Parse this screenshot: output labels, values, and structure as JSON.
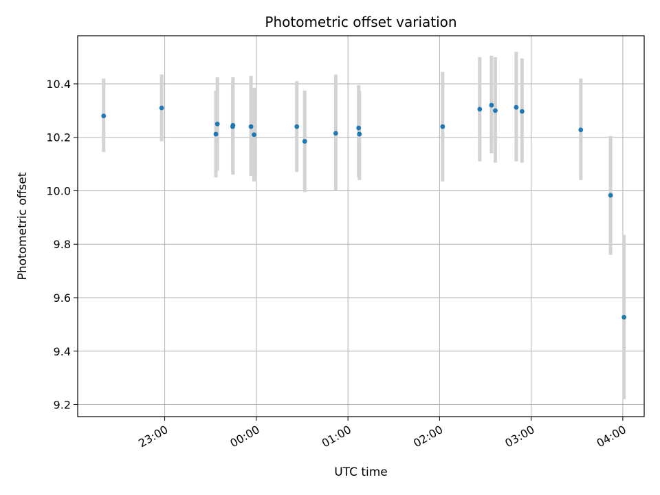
{
  "chart_data": {
    "type": "scatter",
    "title": "Photometric offset variation",
    "xlabel": "UTC time",
    "ylabel": "Photometric offset",
    "x_tick_labels": [
      "23:00",
      "00:00",
      "01:00",
      "02:00",
      "03:00",
      "04:00"
    ],
    "x_tick_minutes": [
      1380,
      1440,
      1500,
      1560,
      1620,
      1680
    ],
    "y_ticks": [
      9.2,
      9.4,
      9.6,
      9.8,
      10.0,
      10.2,
      10.4
    ],
    "y_tick_labels": [
      "9.2",
      "9.4",
      "9.6",
      "9.8",
      "10.0",
      "10.2",
      "10.4"
    ],
    "xlim_minutes": [
      1323,
      1694
    ],
    "ylim": [
      9.155,
      10.58
    ],
    "grid": true,
    "point_color": "#1f77b4",
    "errorbar_color": "#d3d3d3",
    "points": [
      {
        "t": 1340.0,
        "y": 10.28,
        "ylo": 10.145,
        "yhi": 10.42
      },
      {
        "t": 1378.0,
        "y": 10.31,
        "ylo": 10.185,
        "yhi": 10.435
      },
      {
        "t": 1413.5,
        "y": 10.212,
        "ylo": 10.05,
        "yhi": 10.375
      },
      {
        "t": 1414.5,
        "y": 10.25,
        "ylo": 10.075,
        "yhi": 10.425
      },
      {
        "t": 1424.5,
        "y": 10.24,
        "ylo": 10.07,
        "yhi": 10.41
      },
      {
        "t": 1424.7,
        "y": 10.245,
        "ylo": 10.06,
        "yhi": 10.425
      },
      {
        "t": 1436.5,
        "y": 10.24,
        "ylo": 10.055,
        "yhi": 10.43
      },
      {
        "t": 1438.5,
        "y": 10.21,
        "ylo": 10.035,
        "yhi": 10.385
      },
      {
        "t": 1466.5,
        "y": 10.24,
        "ylo": 10.07,
        "yhi": 10.41
      },
      {
        "t": 1471.7,
        "y": 10.185,
        "ylo": 9.995,
        "yhi": 10.375
      },
      {
        "t": 1492.0,
        "y": 10.215,
        "ylo": 10.0,
        "yhi": 10.435
      },
      {
        "t": 1507.0,
        "y": 10.235,
        "ylo": 10.05,
        "yhi": 10.395
      },
      {
        "t": 1507.5,
        "y": 10.212,
        "ylo": 10.04,
        "yhi": 10.375
      },
      {
        "t": 1562.0,
        "y": 10.24,
        "ylo": 10.035,
        "yhi": 10.445
      },
      {
        "t": 1586.3,
        "y": 10.305,
        "ylo": 10.11,
        "yhi": 10.5
      },
      {
        "t": 1594.0,
        "y": 10.32,
        "ylo": 10.14,
        "yhi": 10.505
      },
      {
        "t": 1596.5,
        "y": 10.3,
        "ylo": 10.105,
        "yhi": 10.5
      },
      {
        "t": 1610.2,
        "y": 10.312,
        "ylo": 10.11,
        "yhi": 10.52
      },
      {
        "t": 1614.0,
        "y": 10.297,
        "ylo": 10.105,
        "yhi": 10.495
      },
      {
        "t": 1652.5,
        "y": 10.228,
        "ylo": 10.04,
        "yhi": 10.42
      },
      {
        "t": 1672.0,
        "y": 9.983,
        "ylo": 9.76,
        "yhi": 10.205
      },
      {
        "t": 1680.8,
        "y": 9.527,
        "ylo": 9.22,
        "yhi": 9.835
      }
    ]
  }
}
